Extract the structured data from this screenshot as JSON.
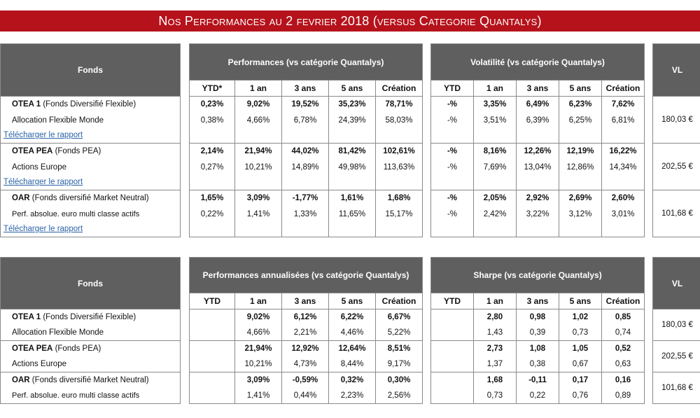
{
  "banner_title": "Nos Performances au 2 fevrier 2018 (versus Categorie Quantalys)",
  "header_fonds": "Fonds",
  "header_vl": "VL",
  "download_label": "Télécharger le rapport",
  "table1": {
    "perf_header": "Performances (vs catégorie Quantalys)",
    "vol_header": "Volatilité (vs catégorie Quantalys)",
    "perf_cols": [
      "YTD*",
      "1 an",
      "3 ans",
      "5 ans",
      "Création"
    ],
    "vol_cols": [
      "YTD",
      "1 an",
      "3 ans",
      "5 ans",
      "Création"
    ],
    "funds": [
      {
        "name": "OTEA 1",
        "type": "(Fonds Diversifié Flexible)",
        "category": "Allocation Flexible Monde",
        "perf": [
          "0,23%",
          "9,02%",
          "19,52%",
          "35,23%",
          "78,71%"
        ],
        "perf_cat": [
          "0,38%",
          "4,66%",
          "6,78%",
          "24,39%",
          "58,03%"
        ],
        "vol": [
          "-%",
          "3,35%",
          "6,49%",
          "6,23%",
          "7,62%"
        ],
        "vol_cat": [
          "-%",
          "3,51%",
          "6,39%",
          "6,25%",
          "6,81%"
        ],
        "vl": "180,03 €"
      },
      {
        "name": "OTEA PEA",
        "type": "(Fonds PEA)",
        "category": "Actions Europe",
        "perf": [
          "2,14%",
          "21,94%",
          "44,02%",
          "81,42%",
          "102,61%"
        ],
        "perf_cat": [
          "0,27%",
          "10,21%",
          "14,89%",
          "49,98%",
          "113,63%"
        ],
        "vol": [
          "-%",
          "8,16%",
          "12,26%",
          "12,19%",
          "16,22%"
        ],
        "vol_cat": [
          "-%",
          "7,69%",
          "13,04%",
          "12,86%",
          "14,34%"
        ],
        "vl": "202,55 €"
      },
      {
        "name": "OAR",
        "type": "(Fonds diversifié Market Neutral)",
        "category": "Perf. absolue. euro multi classe actifs",
        "perf": [
          "1,65%",
          "3,09%",
          "-1,77%",
          "1,61%",
          "1,68%"
        ],
        "perf_cat": [
          "0,22%",
          "1,41%",
          "1,33%",
          "11,65%",
          "15,17%"
        ],
        "vol": [
          "-%",
          "2,05%",
          "2,92%",
          "2,69%",
          "2,60%"
        ],
        "vol_cat": [
          "-%",
          "2,42%",
          "3,22%",
          "3,12%",
          "3,01%"
        ],
        "vl": "101,68 €"
      }
    ]
  },
  "table2": {
    "perf_header": "Performances annualisées (vs catégorie Quantalys)",
    "sharpe_header": "Sharpe (vs catégorie Quantalys)",
    "perf_cols": [
      "YTD",
      "1 an",
      "3 ans",
      "5 ans",
      "Création"
    ],
    "sharpe_cols": [
      "YTD",
      "1 an",
      "3 ans",
      "5 ans",
      "Création"
    ],
    "funds": [
      {
        "name": "OTEA 1",
        "type": "(Fonds Diversifié Flexible)",
        "category": "Allocation Flexible Monde",
        "perf": [
          "",
          "9,02%",
          "6,12%",
          "6,22%",
          "6,67%"
        ],
        "perf_cat": [
          "",
          "4,66%",
          "2,21%",
          "4,46%",
          "5,22%"
        ],
        "sharpe": [
          "",
          "2,80",
          "0,98",
          "1,02",
          "0,85"
        ],
        "sharpe_cat": [
          "",
          "1,43",
          "0,39",
          "0,73",
          "0,74"
        ],
        "vl": "180,03 €"
      },
      {
        "name": "OTEA PEA",
        "type": "(Fonds PEA)",
        "category": "Actions Europe",
        "perf": [
          "",
          "21,94%",
          "12,92%",
          "12,64%",
          "8,51%"
        ],
        "perf_cat": [
          "",
          "10,21%",
          "4,73%",
          "8,44%",
          "9,17%"
        ],
        "sharpe": [
          "",
          "2,73",
          "1,08",
          "1,05",
          "0,52"
        ],
        "sharpe_cat": [
          "",
          "1,37",
          "0,38",
          "0,67",
          "0,63"
        ],
        "vl": "202,55 €"
      },
      {
        "name": "OAR",
        "type": "(Fonds diversifié Market Neutral)",
        "category": "Perf. absolue. euro multi classe actifs",
        "perf": [
          "",
          "3,09%",
          "-0,59%",
          "0,32%",
          "0,30%"
        ],
        "perf_cat": [
          "",
          "1,41%",
          "0,44%",
          "2,23%",
          "2,56%"
        ],
        "sharpe": [
          "",
          "1,68",
          "-0,11",
          "0,17",
          "0,16"
        ],
        "sharpe_cat": [
          "",
          "0,73",
          "0,22",
          "0,76",
          "0,89"
        ],
        "vl": "101,68 €"
      }
    ]
  }
}
